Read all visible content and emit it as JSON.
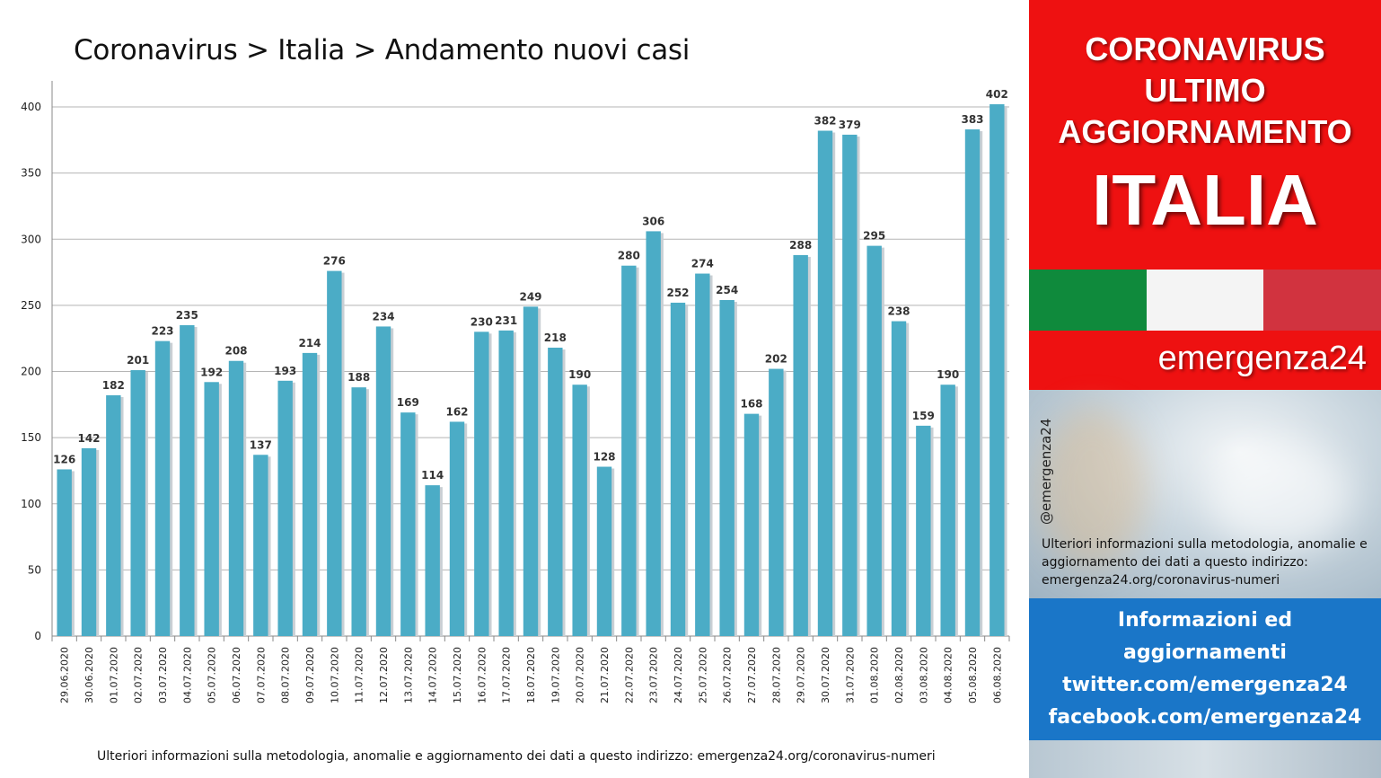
{
  "title": "Coronavirus > Italia > Andamento nuovi casi",
  "footer_note": "Ulteriori informazioni sulla metodologia, anomalie e aggiornamento dei dati a questo indirizzo: emergenza24.org/coronavirus-numeri",
  "colors": {
    "bar": "#4bacc6",
    "bar_shadow": "#c9cfd4",
    "banner_red": "#ee1111",
    "blue_box": "#1a76c8",
    "flag_green": "#0f8a3c",
    "flag_red": "#d1333f"
  },
  "chart_data": {
    "type": "bar",
    "title": "Coronavirus > Italia > Andamento nuovi casi",
    "xlabel": "",
    "ylabel": "",
    "ylim": [
      0,
      420
    ],
    "yticks": [
      0,
      50,
      100,
      150,
      200,
      250,
      300,
      350,
      400
    ],
    "grid": true,
    "data_labels": true,
    "categories": [
      "29.06.2020",
      "30.06.2020",
      "01.07.2020",
      "02.07.2020",
      "03.07.2020",
      "04.07.2020",
      "05.07.2020",
      "06.07.2020",
      "07.07.2020",
      "08.07.2020",
      "09.07.2020",
      "10.07.2020",
      "11.07.2020",
      "12.07.2020",
      "13.07.2020",
      "14.07.2020",
      "15.07.2020",
      "16.07.2020",
      "17.07.2020",
      "18.07.2020",
      "19.07.2020",
      "20.07.2020",
      "21.07.2020",
      "22.07.2020",
      "23.07.2020",
      "24.07.2020",
      "25.07.2020",
      "26.07.2020",
      "27.07.2020",
      "28.07.2020",
      "29.07.2020",
      "30.07.2020",
      "31.07.2020",
      "01.08.2020",
      "02.08.2020",
      "03.08.2020",
      "04.08.2020",
      "05.08.2020",
      "06.08.2020"
    ],
    "values": [
      126,
      142,
      182,
      201,
      223,
      235,
      192,
      208,
      137,
      193,
      214,
      276,
      188,
      234,
      169,
      114,
      162,
      230,
      231,
      249,
      218,
      190,
      128,
      280,
      306,
      252,
      274,
      254,
      168,
      202,
      288,
      382,
      379,
      295,
      238,
      159,
      190,
      383,
      402
    ]
  },
  "side_panel": {
    "banner_lines": [
      "CORONAVIRUS",
      "ULTIMO",
      "AGGIORNAMENTO"
    ],
    "banner_big": "ITALIA",
    "brand": "emergenza24",
    "handle": "@emergenza24",
    "note": "Ulteriori informazioni sulla metodologia, anomalie e aggiornamento dei dati a questo indirizzo: emergenza24.org/coronavirus-numeri",
    "info_lines": [
      "Informazioni ed",
      "aggiornamenti",
      "twitter.com/emergenza24",
      "facebook.com/emergenza24"
    ]
  }
}
